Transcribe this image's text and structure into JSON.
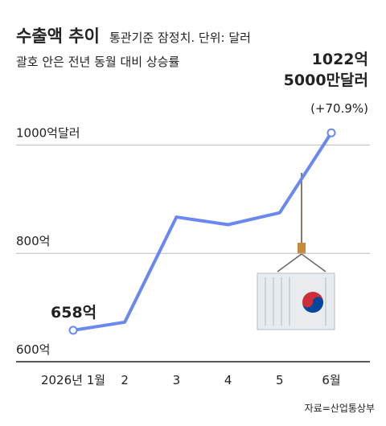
{
  "chart_data": {
    "type": "line",
    "title": "수출액 추이",
    "subtitle": "통관기준 잠정치. 단위: 달러",
    "note": "괄호 안은 전년 동월 대비 상승률",
    "source": "자료=산업통상부",
    "categories": [
      "2026년 1월",
      "2",
      "3",
      "4",
      "5",
      "6월"
    ],
    "series": [
      {
        "name": "수출액",
        "color": "#6a88f2",
        "values": [
          658,
          673,
          867,
          853,
          875,
          1022.5
        ],
        "value_labels": [
          "658억",
          null,
          null,
          null,
          null,
          "1022억 5000만달러"
        ]
      }
    ],
    "growth_label": "(+70.9%)",
    "ylim": [
      600,
      1060
    ],
    "yticks": [
      {
        "value": 600,
        "label": "600억"
      },
      {
        "value": 800,
        "label": "800억"
      },
      {
        "value": 1000,
        "label": "1000억달러"
      }
    ],
    "grid": true
  }
}
